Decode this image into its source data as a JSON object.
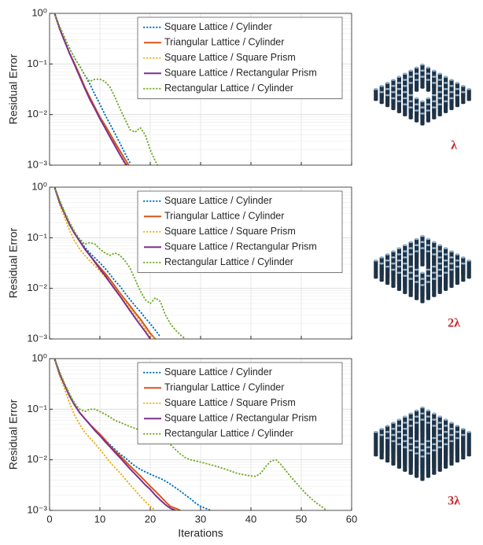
{
  "chart_data": [
    {
      "type": "line",
      "ylabel": "Residual Error",
      "log_y": true,
      "grid": true,
      "legend": "upper center",
      "xlim": [
        0,
        60
      ],
      "xticks": [
        0,
        10,
        20,
        30,
        40,
        50,
        60
      ],
      "ylim": [
        0.001,
        1
      ],
      "yticks": [
        {
          "value": 1,
          "label": "10⁰"
        },
        {
          "value": 0.1,
          "label": "10⁻¹"
        },
        {
          "value": 0.01,
          "label": "10⁻²"
        },
        {
          "value": 0.001,
          "label": "10⁻³"
        }
      ],
      "x": [
        1,
        2,
        3,
        4,
        5,
        6,
        7,
        8,
        9,
        10,
        11,
        12,
        13,
        14,
        15,
        16,
        17,
        18,
        19,
        20,
        21,
        22
      ],
      "series": [
        {
          "name": "Square Lattice / Cylinder",
          "color": "#0072bd",
          "style": "dotted",
          "values": [
            1,
            0.55,
            0.33,
            0.2,
            0.13,
            0.09,
            0.06,
            0.04,
            0.025,
            0.016,
            0.01,
            0.0065,
            0.0042,
            0.0027,
            0.0017,
            0.0011,
            null,
            null,
            null,
            null,
            null,
            null
          ]
        },
        {
          "name": "Triangular Lattice / Cylinder",
          "color": "#d95319",
          "style": "solid",
          "values": [
            1,
            0.5,
            0.28,
            0.16,
            0.1,
            0.06,
            0.035,
            0.022,
            0.014,
            0.009,
            0.0062,
            0.0042,
            0.0028,
            0.0019,
            0.0013,
            0.0009,
            null,
            null,
            null,
            null,
            null,
            null
          ]
        },
        {
          "name": "Square Lattice / Square Prism",
          "color": "#edb120",
          "style": "dotted",
          "values": [
            1,
            0.5,
            0.28,
            0.16,
            0.095,
            0.055,
            0.033,
            0.02,
            0.013,
            0.0085,
            0.0056,
            0.0037,
            0.0024,
            0.0016,
            0.001,
            null,
            null,
            null,
            null,
            null,
            null,
            null
          ]
        },
        {
          "name": "Square Lattice / Rectangular Prism",
          "color": "#7e2f8e",
          "style": "solid",
          "values": [
            1,
            0.5,
            0.28,
            0.16,
            0.095,
            0.056,
            0.033,
            0.02,
            0.013,
            0.0083,
            0.0055,
            0.0036,
            0.0024,
            0.0016,
            0.0011,
            0.0008,
            null,
            null,
            null,
            null,
            null,
            null
          ]
        },
        {
          "name": "Rectangular Lattice / Cylinder",
          "color": "#77ac30",
          "style": "dotted",
          "values": [
            1,
            0.55,
            0.33,
            0.2,
            0.13,
            0.09,
            0.06,
            0.045,
            0.05,
            0.05,
            0.045,
            0.035,
            0.022,
            0.013,
            0.008,
            0.005,
            0.0045,
            0.0055,
            0.004,
            0.002,
            0.0012,
            0.0008
          ]
        }
      ]
    },
    {
      "type": "line",
      "ylabel": "Residual Error",
      "log_y": true,
      "grid": true,
      "legend": "upper center",
      "xlim": [
        0,
        60
      ],
      "xticks": [
        0,
        10,
        20,
        30,
        40,
        50,
        60
      ],
      "ylim": [
        0.001,
        1
      ],
      "yticks": [
        {
          "value": 1,
          "label": "10⁰"
        },
        {
          "value": 0.1,
          "label": "10⁻¹"
        },
        {
          "value": 0.01,
          "label": "10⁻²"
        },
        {
          "value": 0.001,
          "label": "10⁻³"
        }
      ],
      "x": [
        1,
        2,
        3,
        4,
        5,
        6,
        7,
        8,
        9,
        10,
        11,
        12,
        13,
        14,
        15,
        16,
        17,
        18,
        19,
        20,
        21,
        22,
        23,
        24,
        25,
        26,
        27
      ],
      "series": [
        {
          "name": "Square Lattice / Cylinder",
          "color": "#0072bd",
          "style": "dotted",
          "values": [
            1,
            0.55,
            0.32,
            0.2,
            0.13,
            0.09,
            0.065,
            0.05,
            0.04,
            0.032,
            0.025,
            0.019,
            0.014,
            0.011,
            0.008,
            0.006,
            0.0045,
            0.0035,
            0.0026,
            0.002,
            0.0015,
            0.0011,
            null,
            null,
            null,
            null,
            null
          ]
        },
        {
          "name": "Triangular Lattice / Cylinder",
          "color": "#d95319",
          "style": "solid",
          "values": [
            1,
            0.5,
            0.3,
            0.18,
            0.12,
            0.085,
            0.06,
            0.045,
            0.034,
            0.026,
            0.02,
            0.015,
            0.011,
            0.008,
            0.006,
            0.0045,
            0.0033,
            0.0025,
            0.0018,
            0.0013,
            0.001,
            null,
            null,
            null,
            null,
            null,
            null
          ]
        },
        {
          "name": "Square Lattice / Square Prism",
          "color": "#edb120",
          "style": "dotted",
          "values": [
            1,
            0.45,
            0.25,
            0.14,
            0.085,
            0.06,
            0.045,
            0.035,
            0.028,
            0.022,
            0.017,
            0.013,
            0.01,
            0.0075,
            0.0055,
            0.004,
            0.003,
            0.0022,
            0.0016,
            0.0012,
            0.001,
            null,
            null,
            null,
            null,
            null,
            null
          ]
        },
        {
          "name": "Square Lattice / Rectangular Prism",
          "color": "#7e2f8e",
          "style": "solid",
          "values": [
            1,
            0.5,
            0.3,
            0.18,
            0.12,
            0.085,
            0.06,
            0.045,
            0.033,
            0.024,
            0.018,
            0.013,
            0.0095,
            0.007,
            0.005,
            0.0036,
            0.0026,
            0.0019,
            0.0014,
            0.001,
            null,
            null,
            null,
            null,
            null,
            null,
            null
          ]
        },
        {
          "name": "Rectangular Lattice / Cylinder",
          "color": "#77ac30",
          "style": "dotted",
          "values": [
            1,
            0.55,
            0.32,
            0.2,
            0.13,
            0.095,
            0.075,
            0.08,
            0.075,
            0.06,
            0.05,
            0.045,
            0.05,
            0.045,
            0.035,
            0.025,
            0.015,
            0.009,
            0.006,
            0.005,
            0.0065,
            0.0055,
            0.003,
            0.002,
            0.0015,
            0.0012,
            0.001
          ]
        }
      ]
    },
    {
      "type": "line",
      "ylabel": "Residual Error",
      "xlabel": "Iterations",
      "log_y": true,
      "grid": true,
      "legend": "upper center",
      "xlim": [
        0,
        60
      ],
      "xticks": [
        0,
        10,
        20,
        30,
        40,
        50,
        60
      ],
      "ylim": [
        0.001,
        1
      ],
      "yticks": [
        {
          "value": 1,
          "label": "10⁰"
        },
        {
          "value": 0.1,
          "label": "10⁻¹"
        },
        {
          "value": 0.01,
          "label": "10⁻²"
        },
        {
          "value": 0.001,
          "label": "10⁻³"
        }
      ],
      "x": [
        1,
        2,
        3,
        4,
        5,
        6,
        7,
        8,
        9,
        10,
        11,
        12,
        13,
        14,
        15,
        16,
        17,
        18,
        19,
        20,
        21,
        22,
        23,
        24,
        25,
        26,
        27,
        28,
        29,
        30,
        31,
        32,
        33,
        34,
        35,
        36,
        37,
        38,
        39,
        40,
        41,
        42,
        43,
        44,
        45,
        46,
        47,
        48,
        49,
        50,
        51,
        52,
        53,
        54,
        55
      ],
      "series": [
        {
          "name": "Square Lattice / Cylinder",
          "color": "#0072bd",
          "style": "dotted",
          "values": [
            1,
            0.55,
            0.3,
            0.18,
            0.12,
            0.085,
            0.065,
            0.05,
            0.04,
            0.032,
            0.025,
            0.02,
            0.016,
            0.013,
            0.011,
            0.009,
            0.0075,
            0.0065,
            0.0058,
            0.0052,
            0.0047,
            0.0043,
            0.0038,
            0.0033,
            0.0028,
            0.0024,
            0.002,
            0.0017,
            0.0014,
            0.0012,
            0.0011,
            0.001,
            null,
            null,
            null,
            null,
            null,
            null,
            null,
            null,
            null,
            null,
            null,
            null,
            null,
            null,
            null,
            null,
            null,
            null,
            null,
            null,
            null,
            null,
            null
          ]
        },
        {
          "name": "Triangular Lattice / Cylinder",
          "color": "#d95319",
          "style": "solid",
          "values": [
            1,
            0.5,
            0.3,
            0.18,
            0.12,
            0.085,
            0.065,
            0.05,
            0.04,
            0.032,
            0.025,
            0.019,
            0.015,
            0.012,
            0.0095,
            0.0075,
            0.006,
            0.0048,
            0.0038,
            0.003,
            0.0024,
            0.0019,
            0.0015,
            0.0012,
            0.0011,
            0.001,
            null,
            null,
            null,
            null,
            null,
            null,
            null,
            null,
            null,
            null,
            null,
            null,
            null,
            null,
            null,
            null,
            null,
            null,
            null,
            null,
            null,
            null,
            null,
            null,
            null,
            null,
            null,
            null,
            null
          ]
        },
        {
          "name": "Square Lattice / Square Prism",
          "color": "#edb120",
          "style": "dotted",
          "values": [
            1,
            0.45,
            0.25,
            0.13,
            0.075,
            0.05,
            0.035,
            0.027,
            0.021,
            0.016,
            0.012,
            0.009,
            0.007,
            0.0055,
            0.0042,
            0.0032,
            0.0025,
            0.0019,
            0.0015,
            0.0012,
            0.001,
            null,
            null,
            null,
            null,
            null,
            null,
            null,
            null,
            null,
            null,
            null,
            null,
            null,
            null,
            null,
            null,
            null,
            null,
            null,
            null,
            null,
            null,
            null,
            null,
            null,
            null,
            null,
            null,
            null,
            null,
            null,
            null,
            null,
            null
          ]
        },
        {
          "name": "Square Lattice / Rectangular Prism",
          "color": "#7e2f8e",
          "style": "solid",
          "values": [
            1,
            0.5,
            0.3,
            0.18,
            0.12,
            0.085,
            0.065,
            0.05,
            0.038,
            0.03,
            0.023,
            0.018,
            0.014,
            0.011,
            0.0085,
            0.0066,
            0.0052,
            0.0041,
            0.0032,
            0.0026,
            0.002,
            0.0016,
            0.0013,
            0.0011,
            0.001,
            null,
            null,
            null,
            null,
            null,
            null,
            null,
            null,
            null,
            null,
            null,
            null,
            null,
            null,
            null,
            null,
            null,
            null,
            null,
            null,
            null,
            null,
            null,
            null,
            null,
            null,
            null,
            null,
            null,
            null
          ]
        },
        {
          "name": "Rectangular Lattice / Cylinder",
          "color": "#77ac30",
          "style": "dotted",
          "values": [
            1,
            0.55,
            0.32,
            0.2,
            0.13,
            0.1,
            0.09,
            0.1,
            0.1,
            0.09,
            0.08,
            0.07,
            0.06,
            0.055,
            0.05,
            0.045,
            0.042,
            0.038,
            0.035,
            0.04,
            0.035,
            0.03,
            0.025,
            0.02,
            0.016,
            0.013,
            0.011,
            0.01,
            0.0095,
            0.009,
            0.0085,
            0.008,
            0.0075,
            0.007,
            0.0065,
            0.006,
            0.0055,
            0.0052,
            0.005,
            0.0048,
            0.0047,
            0.0055,
            0.0075,
            0.0095,
            0.01,
            0.008,
            0.006,
            0.0045,
            0.0035,
            0.0027,
            0.0021,
            0.0017,
            0.0014,
            0.0012,
            0.001
          ]
        }
      ]
    }
  ],
  "figures": [
    {
      "label": "λ"
    },
    {
      "label": "2λ"
    },
    {
      "label": "3λ"
    }
  ]
}
